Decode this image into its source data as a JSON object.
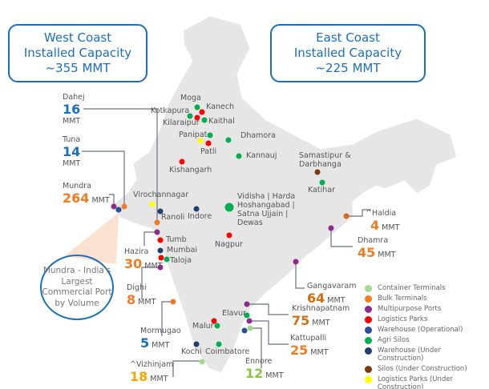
{
  "west_box": {
    "line1": "West Coast",
    "line2": "Installed Capacity",
    "line3": "~355 MMT"
  },
  "east_box": {
    "line1": "East Coast",
    "line2": "Installed Capacity",
    "line3": "~225 MMT"
  },
  "callout": "Mundra - India's Largest Commercial Port by Volume",
  "unit": "MMT",
  "ports": [
    {
      "name": "Dahej",
      "value": "16"
    },
    {
      "name": "Tuna",
      "value": "14"
    },
    {
      "name": "Mundra",
      "value": "264"
    },
    {
      "name": "Hazira",
      "value": "30"
    },
    {
      "name": "Dighi",
      "value": "8"
    },
    {
      "name": "Mormugao",
      "value": "5"
    },
    {
      "name": "^Vizhinjam",
      "value": "18"
    },
    {
      "name": "Ennore",
      "value": "12"
    },
    {
      "name": "Kattupalli",
      "value": "25"
    },
    {
      "name": "Krishnapatnam",
      "value": "75"
    },
    {
      "name": "Gangavaram",
      "value": "64"
    },
    {
      "name": "Dhamra",
      "value": "45"
    },
    {
      "name": "^Haldia",
      "value": "4"
    }
  ],
  "places": [
    "Moga",
    "Kanech",
    "Kotkapura",
    "Kilaraipur",
    "Kaithal",
    "Panipat",
    "Patli",
    "Dhamora",
    "Kannauj",
    "Kishangarh",
    "Samastipur &",
    "Darbhanga",
    "Katihar",
    "Virochannagar",
    "Ranoli",
    "Indore",
    "Vidisha | Harda",
    "Hoshangabad |",
    "Satna  Ujjain |",
    "Dewas",
    "Tumb",
    "Mumbai",
    "Taloja",
    "Nagpur",
    "Elavur",
    "Malur",
    "Kochi",
    "Coimbatore"
  ],
  "legend": [
    {
      "label": "Container Terminals",
      "color": "#a5d88f"
    },
    {
      "label": "Bulk Terminals",
      "color": "#f47a20"
    },
    {
      "label": "Multipurpose Ports",
      "color": "#8e2a8e"
    },
    {
      "label": "Logistics Parks",
      "color": "#ff0000"
    },
    {
      "label": "Warehouse (Operational)",
      "color": "#2a4f9a"
    },
    {
      "label": "Agri Silos",
      "color": "#00b050"
    },
    {
      "label": "Warehouse (Under Construction)",
      "color": "#1f3f6e"
    },
    {
      "label": "Silos (Under Construction)",
      "color": "#7b3a10"
    },
    {
      "label": "Logistics Parks (Under Construction)",
      "color": "#ffff00"
    }
  ]
}
